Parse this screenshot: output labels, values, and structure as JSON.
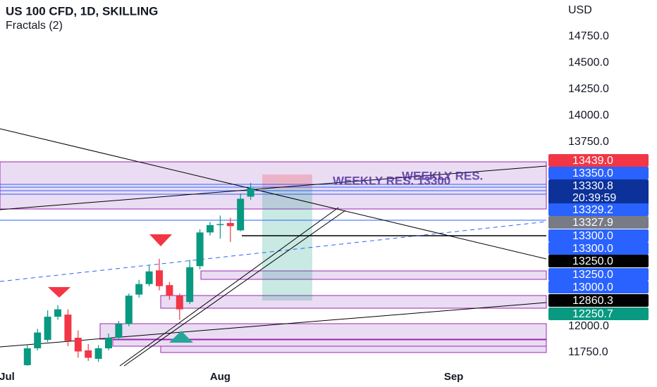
{
  "chart_data": {
    "type": "candlestick",
    "title": "US 100 CFD, 1D, SKILLING",
    "subtitle": "Fractals (2)",
    "currency": "USD",
    "categories": [
      "Jul",
      null,
      null,
      null,
      null,
      null,
      null,
      null,
      null,
      null,
      null,
      null,
      null,
      null,
      null,
      null,
      null,
      null,
      null,
      null,
      null,
      "Aug",
      null,
      null,
      null,
      null,
      null,
      null,
      null,
      null,
      null,
      null,
      null,
      null,
      null,
      null,
      null,
      null,
      null,
      null,
      null,
      null,
      null,
      null,
      "Sep",
      null,
      null,
      null,
      null,
      null,
      null,
      null,
      null,
      null
    ],
    "open": [
      null,
      null,
      11630,
      11790,
      11870,
      12090,
      12110,
      11890,
      11770,
      11690,
      11790,
      11890,
      12020,
      12300,
      12400,
      12530,
      12390,
      12290,
      12230,
      12570,
      12890,
      12960,
      12980,
      12910,
      13230,
      null,
      null,
      null,
      null,
      null,
      null,
      null,
      null,
      null,
      null,
      null,
      null,
      null,
      null,
      null,
      null,
      null,
      null,
      null,
      null,
      null,
      null,
      null,
      null,
      null,
      null,
      null,
      null,
      null
    ],
    "high": [
      null,
      null,
      11825,
      11975,
      12150,
      12200,
      12160,
      11960,
      11830,
      11820,
      11930,
      12050,
      12310,
      12440,
      12580,
      12640,
      12420,
      12310,
      12630,
      12920,
      12990,
      13050,
      13030,
      13260,
      13360,
      null,
      null,
      null,
      null,
      null,
      null,
      null,
      null,
      null,
      null,
      null,
      null,
      null,
      null,
      null,
      null,
      null,
      null,
      null,
      null,
      null,
      null,
      null,
      null,
      null,
      null,
      null,
      null,
      null
    ],
    "low": [
      null,
      null,
      11625,
      11770,
      11850,
      12060,
      11810,
      11700,
      11670,
      11660,
      11770,
      11870,
      12000,
      12270,
      12380,
      12340,
      12250,
      12060,
      12210,
      12540,
      12860,
      12830,
      12800,
      12900,
      13200,
      null,
      null,
      null,
      null,
      null,
      null,
      null,
      null,
      null,
      null,
      null,
      null,
      null,
      null,
      null,
      null,
      null,
      null,
      null,
      null,
      null,
      null,
      null,
      null,
      null,
      null,
      null,
      null,
      null
    ],
    "close": [
      null,
      null,
      11790,
      11940,
      12090,
      12160,
      11860,
      11760,
      11700,
      11790,
      11890,
      12020,
      12290,
      12400,
      12520,
      12380,
      12290,
      12160,
      12560,
      12890,
      12960,
      12970,
      12950,
      13210,
      13310,
      null,
      null,
      null,
      null,
      null,
      null,
      null,
      null,
      null,
      null,
      null,
      null,
      null,
      null,
      null,
      null,
      null,
      null,
      null,
      null,
      null,
      null,
      null,
      null,
      null,
      null,
      null,
      null,
      null
    ],
    "up_color": "#089981",
    "down_color": "#f23645",
    "ylim": [
      11623,
      15097
    ],
    "yticks": [
      {
        "value": 14750,
        "label": "14750.0"
      },
      {
        "value": 14500,
        "label": "14500.0"
      },
      {
        "value": 14250,
        "label": "14250.0"
      },
      {
        "value": 14000,
        "label": "14000.0"
      },
      {
        "value": 13750,
        "label": "13750.0"
      },
      {
        "value": 12000,
        "label": "12000.0"
      },
      {
        "value": 11750,
        "label": "11750.0"
      }
    ],
    "price_tags": [
      {
        "value": 13439,
        "label": "13439.0",
        "color": "#f23645"
      },
      {
        "value": 13350,
        "label": "13350.0",
        "color": "#2962ff"
      },
      {
        "value": 13330.8,
        "label": "13330.8",
        "color": "#0c3299",
        "countdown": "20:39:59"
      },
      {
        "value": 13329.2,
        "label": "13329.2",
        "color": "#2962ff"
      },
      {
        "value": 13327.9,
        "label": "13327.9",
        "color": "#787b86"
      },
      {
        "value": 13300,
        "label": "13300.0",
        "color": "#2962ff"
      },
      {
        "value": 13300,
        "label": "13300.0",
        "color": "#2962ff"
      },
      {
        "value": 13250,
        "label": "13250.0",
        "color": "#000000"
      },
      {
        "value": 13250,
        "label": "13250.0",
        "color": "#2962ff"
      },
      {
        "value": 13000,
        "label": "13000.0",
        "color": "#2962ff"
      },
      {
        "value": 12860.3,
        "label": "12860.3",
        "color": "#000000"
      },
      {
        "value": 12250.7,
        "label": "12250.7",
        "color": "#089981"
      }
    ],
    "annotations": [
      "WEEKLY RES.",
      "WEEKLY RES. 13300"
    ]
  }
}
